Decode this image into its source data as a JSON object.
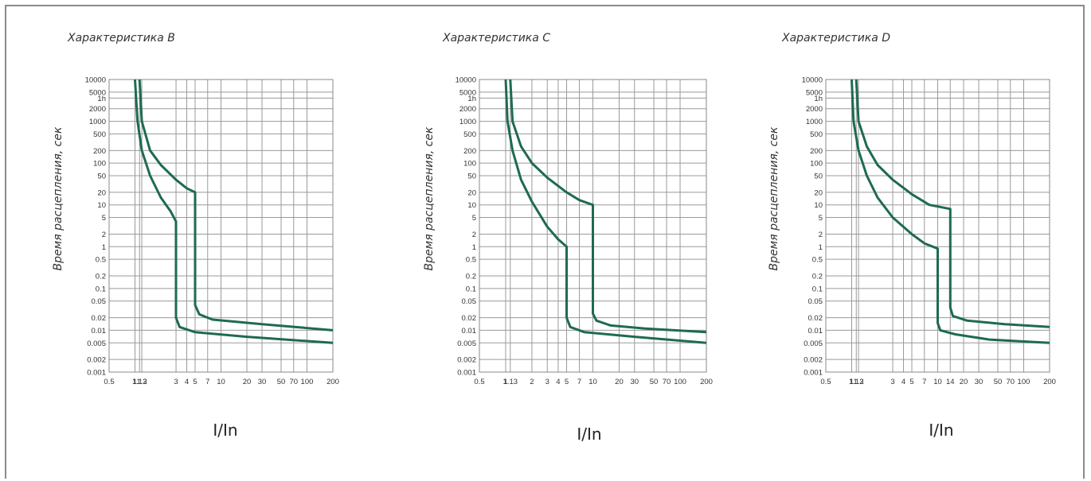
{
  "chart_data": [
    {
      "type": "line",
      "title": "Характеристика B",
      "ylabel": "Время расцепления, сек",
      "xlabel": "I/In",
      "x_tick_labels": [
        "0.5",
        "1",
        "1.13",
        "1.2",
        "3",
        "4",
        "5",
        "7",
        "10",
        "20",
        "30",
        "50",
        "70",
        "100",
        "200"
      ],
      "x_ticks": [
        0.5,
        1,
        1.13,
        1.2,
        3,
        4,
        5,
        7,
        10,
        20,
        30,
        50,
        70,
        100,
        200
      ],
      "y_tick_labels": [
        "10000",
        "5000",
        "1h",
        "2000",
        "1000",
        "500",
        "200",
        "100",
        "50",
        "20",
        "10",
        "5",
        "2",
        "1",
        "0.5",
        "0.2",
        "0.1",
        "0.05",
        "0.02",
        "0.01",
        "0.005",
        "0.002",
        "0.001"
      ],
      "y_ticks": [
        10000,
        5000,
        3600,
        2000,
        1000,
        500,
        200,
        100,
        50,
        20,
        10,
        5,
        2,
        1,
        0.5,
        0.2,
        0.1,
        0.05,
        0.02,
        0.01,
        0.005,
        0.002,
        0.001
      ],
      "xlim": [
        0.5,
        200
      ],
      "ylim": [
        0.001,
        10000
      ],
      "scale": "log-log",
      "grid": true,
      "series": [
        {
          "points": [
            [
              1.0,
              10000
            ],
            [
              1.07,
              1000
            ],
            [
              1.2,
              200
            ],
            [
              1.5,
              50
            ],
            [
              2.0,
              15
            ],
            [
              2.6,
              7
            ],
            [
              3.0,
              4
            ],
            [
              3.0,
              0.02
            ],
            [
              3.3,
              0.012
            ],
            [
              5.0,
              0.009
            ],
            [
              20,
              0.007
            ],
            [
              200,
              0.005
            ]
          ]
        },
        {
          "points": [
            [
              1.13,
              10000
            ],
            [
              1.2,
              1000
            ],
            [
              1.5,
              200
            ],
            [
              2.0,
              90
            ],
            [
              3.0,
              40
            ],
            [
              4.0,
              25
            ],
            [
              5.0,
              20
            ],
            [
              5.0,
              0.04
            ],
            [
              5.6,
              0.024
            ],
            [
              8.0,
              0.018
            ],
            [
              30,
              0.014
            ],
            [
              200,
              0.01
            ]
          ]
        }
      ]
    },
    {
      "type": "line",
      "title": "Характеристика C",
      "ylabel": "Время расцепления, сек",
      "xlabel": "I/In",
      "x_tick_labels": [
        "0.5",
        "1",
        "1.13",
        "2",
        "3",
        "4",
        "5",
        "7",
        "10",
        "20",
        "30",
        "50",
        "70",
        "100",
        "200"
      ],
      "x_ticks": [
        0.5,
        1,
        1.13,
        2,
        3,
        4,
        5,
        7,
        10,
        20,
        30,
        50,
        70,
        100,
        200
      ],
      "y_tick_labels": [
        "10000",
        "5000",
        "1h",
        "2000",
        "1000",
        "500",
        "200",
        "100",
        "50",
        "20",
        "10",
        "5",
        "2",
        "1",
        "0.5",
        "0.2",
        "0.1",
        "0.05",
        "0.02",
        "0.01",
        "0.005",
        "0.002",
        "0.001"
      ],
      "y_ticks": [
        10000,
        5000,
        3600,
        2000,
        1000,
        500,
        200,
        100,
        50,
        20,
        10,
        5,
        2,
        1,
        0.5,
        0.2,
        0.1,
        0.05,
        0.02,
        0.01,
        0.005,
        0.002,
        0.001
      ],
      "xlim": [
        0.5,
        200
      ],
      "ylim": [
        0.001,
        10000
      ],
      "scale": "log-log",
      "grid": true,
      "series": [
        {
          "points": [
            [
              1.0,
              10000
            ],
            [
              1.05,
              1000
            ],
            [
              1.2,
              200
            ],
            [
              1.5,
              40
            ],
            [
              2.0,
              12
            ],
            [
              3.0,
              3
            ],
            [
              4.0,
              1.5
            ],
            [
              5.0,
              1
            ],
            [
              5.0,
              0.02
            ],
            [
              5.5,
              0.012
            ],
            [
              8.0,
              0.009
            ],
            [
              30,
              0.007
            ],
            [
              200,
              0.005
            ]
          ]
        },
        {
          "points": [
            [
              1.13,
              10000
            ],
            [
              1.2,
              1000
            ],
            [
              1.5,
              250
            ],
            [
              2.0,
              100
            ],
            [
              3.0,
              45
            ],
            [
              5.0,
              20
            ],
            [
              7.0,
              13
            ],
            [
              10,
              10
            ],
            [
              10,
              0.025
            ],
            [
              11,
              0.017
            ],
            [
              16,
              0.013
            ],
            [
              40,
              0.011
            ],
            [
              200,
              0.009
            ]
          ]
        }
      ]
    },
    {
      "type": "line",
      "title": "Характеристика D",
      "ylabel": "Время расцепления, сек",
      "xlabel": "I/In",
      "x_tick_labels": [
        "0.5",
        "1",
        "1.13",
        "1.2",
        "3",
        "4",
        "5",
        "7",
        "10",
        "14",
        "20",
        "30",
        "50",
        "70",
        "100",
        "200"
      ],
      "x_ticks": [
        0.5,
        1,
        1.13,
        1.2,
        3,
        4,
        5,
        7,
        10,
        14,
        20,
        30,
        50,
        70,
        100,
        200
      ],
      "y_tick_labels": [
        "10000",
        "5000",
        "1h",
        "2000",
        "1000",
        "500",
        "200",
        "100",
        "50",
        "20",
        "10",
        "5",
        "2",
        "1",
        "0.5",
        "0.2",
        "0.1",
        "0.05",
        "0.02",
        "0.01",
        "0.005",
        "0.002",
        "0.001"
      ],
      "y_ticks": [
        10000,
        5000,
        3600,
        2000,
        1000,
        500,
        200,
        100,
        50,
        20,
        10,
        5,
        2,
        1,
        0.5,
        0.2,
        0.1,
        0.05,
        0.02,
        0.01,
        0.005,
        0.002,
        0.001
      ],
      "xlim": [
        0.5,
        200
      ],
      "ylim": [
        0.001,
        10000
      ],
      "scale": "log-log",
      "grid": true,
      "series": [
        {
          "points": [
            [
              1.0,
              10000
            ],
            [
              1.05,
              1000
            ],
            [
              1.2,
              200
            ],
            [
              1.5,
              50
            ],
            [
              2.0,
              15
            ],
            [
              3.0,
              5
            ],
            [
              5.0,
              2
            ],
            [
              7.0,
              1.2
            ],
            [
              10,
              0.9
            ],
            [
              10,
              0.015
            ],
            [
              10.7,
              0.01
            ],
            [
              16,
              0.008
            ],
            [
              40,
              0.006
            ],
            [
              200,
              0.005
            ]
          ]
        },
        {
          "points": [
            [
              1.13,
              10000
            ],
            [
              1.2,
              1000
            ],
            [
              1.5,
              250
            ],
            [
              2.0,
              90
            ],
            [
              3.0,
              40
            ],
            [
              5.0,
              18
            ],
            [
              8.0,
              10
            ],
            [
              14,
              8
            ],
            [
              14,
              0.035
            ],
            [
              15,
              0.022
            ],
            [
              22,
              0.017
            ],
            [
              60,
              0.014
            ],
            [
              200,
              0.012
            ]
          ]
        }
      ]
    }
  ]
}
